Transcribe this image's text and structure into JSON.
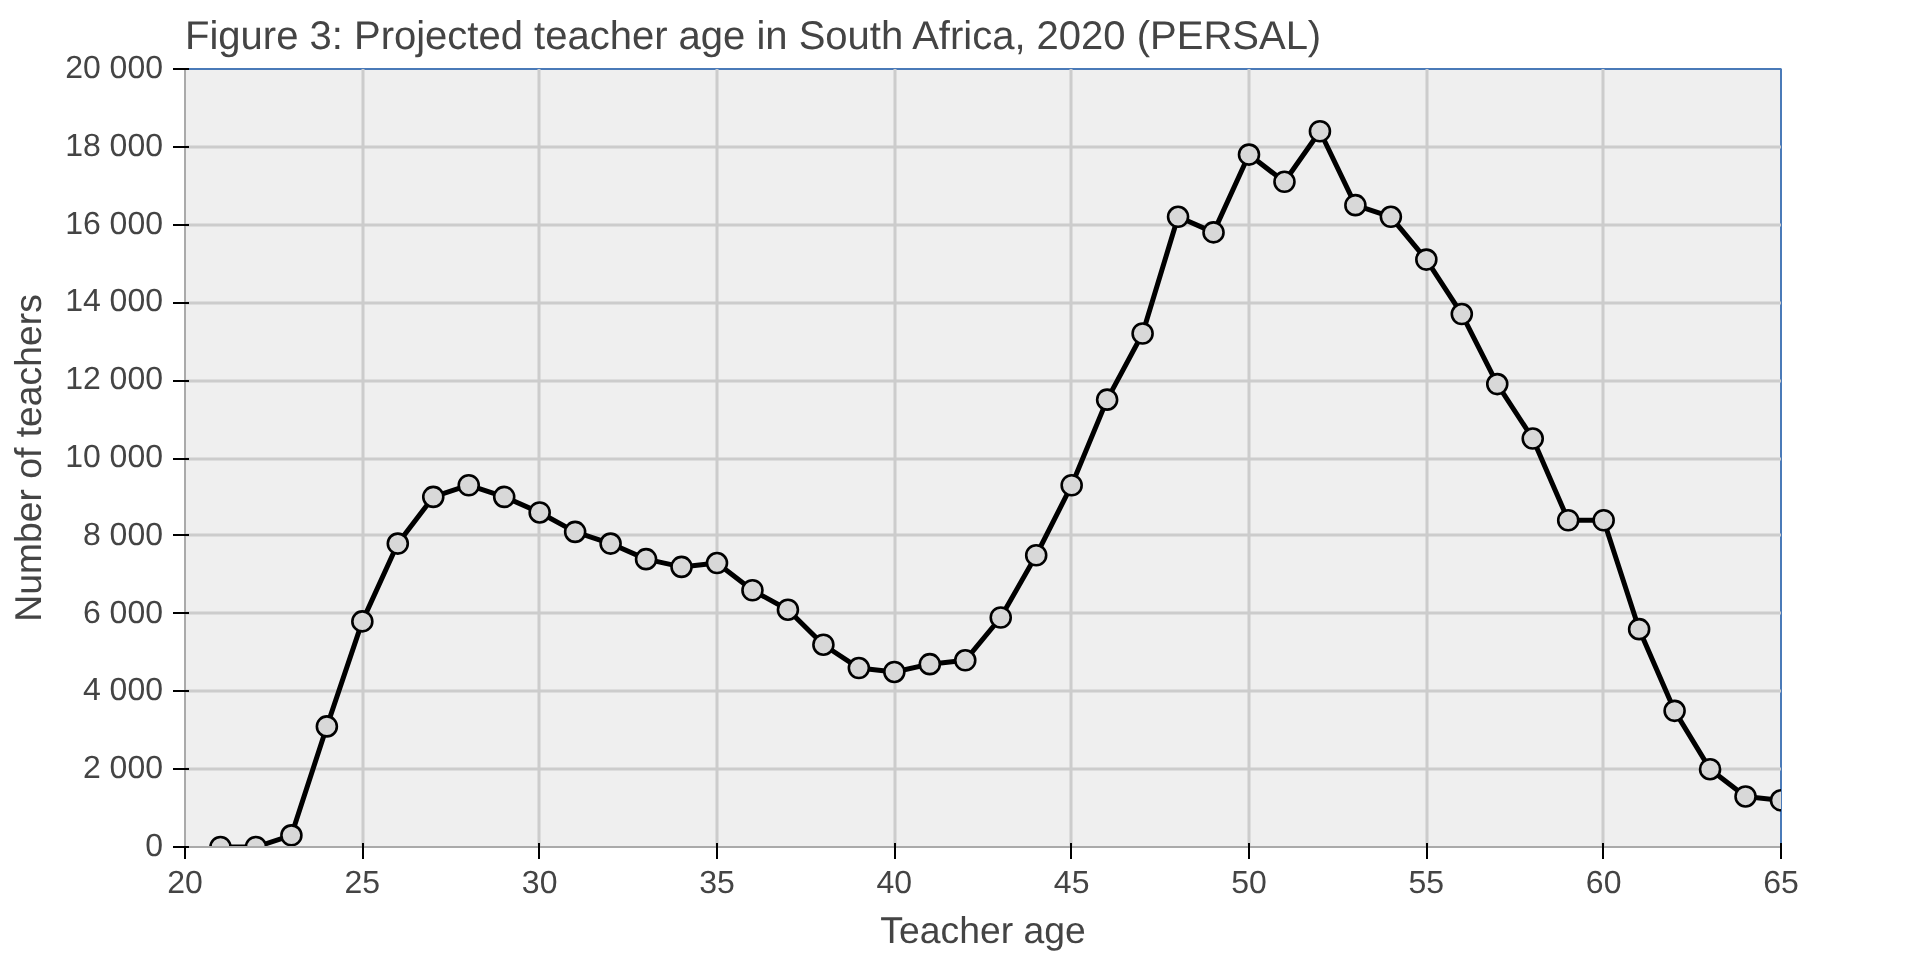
{
  "chart_data": {
    "type": "line",
    "title": "Figure 3: Projected teacher age in South Africa, 2020 (PERSAL)",
    "xlabel": "Teacher age",
    "ylabel": "Number of teachers",
    "x": [
      21,
      22,
      23,
      24,
      25,
      26,
      27,
      28,
      29,
      30,
      31,
      32,
      33,
      34,
      35,
      36,
      37,
      38,
      39,
      40,
      41,
      42,
      43,
      44,
      45,
      46,
      47,
      48,
      49,
      50,
      51,
      52,
      53,
      54,
      55,
      56,
      57,
      58,
      59,
      60,
      61,
      62,
      63,
      64,
      65
    ],
    "series": [
      {
        "color": "#000000",
        "values": [
          0,
          0,
          300,
          3100,
          5800,
          7800,
          9000,
          9300,
          9000,
          8600,
          8100,
          7800,
          7400,
          7200,
          7300,
          6600,
          6100,
          5200,
          4600,
          4500,
          4700,
          4800,
          5900,
          7500,
          9300,
          11500,
          13200,
          16200,
          15800,
          17800,
          17100,
          18400,
          16500,
          16200,
          15100,
          13700,
          11900,
          10500,
          8400,
          8400,
          5600,
          3500,
          2000,
          1300,
          1200
        ]
      }
    ],
    "xlim": [
      20,
      65
    ],
    "xticks": [
      20,
      25,
      30,
      35,
      40,
      45,
      50,
      55,
      60,
      65
    ],
    "ylim": [
      0,
      20000
    ],
    "yticks": [
      0,
      {
        "value": 2000,
        "label": "2 000"
      },
      {
        "value": 4000,
        "label": "4 000"
      },
      {
        "value": 6000,
        "label": "6 000"
      },
      {
        "value": 8000,
        "label": "8 000"
      },
      {
        "value": 10000,
        "label": "10 000"
      },
      {
        "value": 12000,
        "label": "12 000"
      },
      {
        "value": 14000,
        "label": "14 000"
      },
      {
        "value": 16000,
        "label": "16 000"
      },
      {
        "value": 18000,
        "label": "18 000"
      },
      {
        "value": 20000,
        "label": "20 000"
      }
    ],
    "grid": true,
    "marker": "circle",
    "line_style": "solid"
  }
}
